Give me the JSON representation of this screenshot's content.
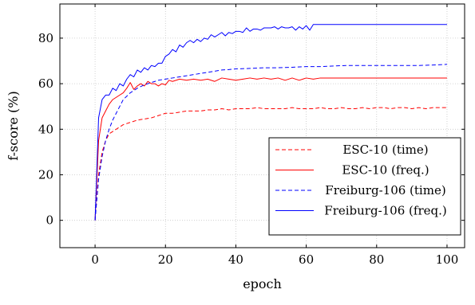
{
  "chart_data": {
    "type": "line",
    "xlabel": "epoch",
    "ylabel": "f-score (%)",
    "xlim": [
      -10,
      105
    ],
    "ylim": [
      -12,
      95
    ],
    "xticks": [
      0,
      20,
      40,
      60,
      80,
      100
    ],
    "yticks": [
      0,
      20,
      40,
      60,
      80
    ],
    "grid": true,
    "legend_position": "bottom-right",
    "series": [
      {
        "name": "ESC-10 (time)",
        "color": "#ff0000",
        "style": "dashed",
        "x": [
          0,
          1,
          2,
          3,
          4,
          5,
          6,
          8,
          10,
          12,
          14,
          16,
          18,
          20,
          22,
          24,
          26,
          28,
          30,
          32,
          34,
          36,
          38,
          40,
          42,
          44,
          46,
          48,
          50,
          52,
          54,
          56,
          58,
          60,
          62,
          64,
          66,
          68,
          70,
          72,
          74,
          76,
          78,
          80,
          82,
          84,
          86,
          88,
          90,
          92,
          94,
          96,
          98,
          100
        ],
        "y": [
          0,
          20,
          30,
          35,
          38,
          39,
          40,
          42,
          43,
          44,
          44.5,
          45,
          46,
          47,
          47,
          47.5,
          48,
          48,
          48,
          48.5,
          48.5,
          49,
          48.5,
          49,
          49,
          49,
          49.5,
          49,
          49,
          49,
          49,
          49.5,
          49,
          49,
          49,
          49.5,
          49,
          49,
          49.5,
          49,
          49,
          49.5,
          49,
          49.5,
          49.5,
          49,
          49.5,
          49.5,
          49,
          49.5,
          49,
          49.5,
          49.5,
          49.5
        ]
      },
      {
        "name": "ESC-10 (freq.)",
        "color": "#ff0000",
        "style": "solid",
        "x": [
          0,
          1,
          2,
          3,
          4,
          5,
          6,
          7,
          8,
          9,
          10,
          11,
          12,
          13,
          14,
          15,
          16,
          17,
          18,
          19,
          20,
          21,
          22,
          24,
          26,
          28,
          30,
          32,
          34,
          36,
          38,
          40,
          42,
          44,
          46,
          48,
          50,
          52,
          54,
          56,
          58,
          60,
          62,
          64,
          66,
          68,
          70,
          72,
          74,
          76,
          78,
          80,
          82,
          84,
          86,
          88,
          90,
          92,
          94,
          96,
          98,
          100
        ],
        "y": [
          0,
          35,
          45,
          48,
          51,
          53,
          54,
          55,
          56,
          58,
          60.5,
          57.5,
          59,
          60,
          59,
          61,
          60,
          60,
          59,
          60,
          59.5,
          61.5,
          61,
          62,
          61.5,
          62,
          61.5,
          62,
          61,
          62.5,
          62,
          61.5,
          62,
          62.5,
          62,
          62.5,
          62,
          62.5,
          61.5,
          62.5,
          61.5,
          62.5,
          62,
          62.5,
          62.5,
          62.5,
          62.5,
          62.5,
          62.5,
          62.5,
          62.5,
          62.5,
          62.5,
          62.5,
          62.5,
          62.5,
          62.5,
          62.5,
          62.5,
          62.5,
          62.5,
          62.5
        ]
      },
      {
        "name": "Freiburg-106 (time)",
        "color": "#0000ff",
        "style": "dashed",
        "x": [
          0,
          1,
          2,
          3,
          4,
          5,
          6,
          7,
          8,
          10,
          12,
          14,
          16,
          18,
          20,
          22,
          24,
          26,
          28,
          30,
          32,
          34,
          36,
          38,
          40,
          44,
          48,
          52,
          56,
          60,
          64,
          68,
          72,
          76,
          80,
          84,
          88,
          92,
          96,
          100
        ],
        "y": [
          0,
          18,
          28,
          35,
          40,
          44,
          47,
          50,
          53,
          56,
          58,
          59.5,
          60.5,
          61.5,
          62,
          62.5,
          63,
          63.5,
          64,
          64.5,
          65,
          65.5,
          66,
          66.2,
          66.5,
          66.7,
          67,
          67,
          67.2,
          67.5,
          67.5,
          67.8,
          68,
          68,
          68,
          68,
          68,
          68,
          68.2,
          68.5
        ]
      },
      {
        "name": "Freiburg-106 (freq.)",
        "color": "#0000ff",
        "style": "solid",
        "x": [
          0,
          1,
          2,
          3,
          4,
          5,
          6,
          7,
          8,
          9,
          10,
          11,
          12,
          13,
          14,
          15,
          16,
          17,
          18,
          19,
          20,
          21,
          22,
          23,
          24,
          25,
          26,
          27,
          28,
          29,
          30,
          31,
          32,
          33,
          34,
          35,
          36,
          37,
          38,
          39,
          40,
          41,
          42,
          43,
          44,
          45,
          46,
          47,
          48,
          49,
          50,
          51,
          52,
          53,
          54,
          55,
          56,
          57,
          58,
          59,
          60,
          61,
          62,
          64,
          66,
          68,
          70,
          72,
          74,
          76,
          78,
          80,
          82,
          84,
          86,
          88,
          90,
          92,
          94,
          96,
          98,
          100
        ],
        "y": [
          0,
          45,
          53,
          55,
          55,
          58,
          57,
          60,
          59,
          62,
          64,
          63,
          66,
          65,
          67,
          66,
          68,
          67.5,
          69,
          69,
          72,
          73,
          75,
          74,
          77,
          76,
          78,
          79,
          78,
          79.5,
          78.5,
          80,
          79.5,
          81.5,
          80.5,
          81.5,
          82.5,
          81,
          82.5,
          82,
          83,
          83,
          82.5,
          84.5,
          83,
          84,
          84,
          83.5,
          84.5,
          84.5,
          84.5,
          85,
          84,
          85,
          84.5,
          84.5,
          85,
          83.5,
          85,
          84,
          85.5,
          83.5,
          86,
          86,
          86,
          86,
          86,
          86,
          86,
          86,
          86,
          86,
          86,
          86,
          86,
          86,
          86,
          86,
          86,
          86,
          86,
          86
        ]
      }
    ]
  }
}
